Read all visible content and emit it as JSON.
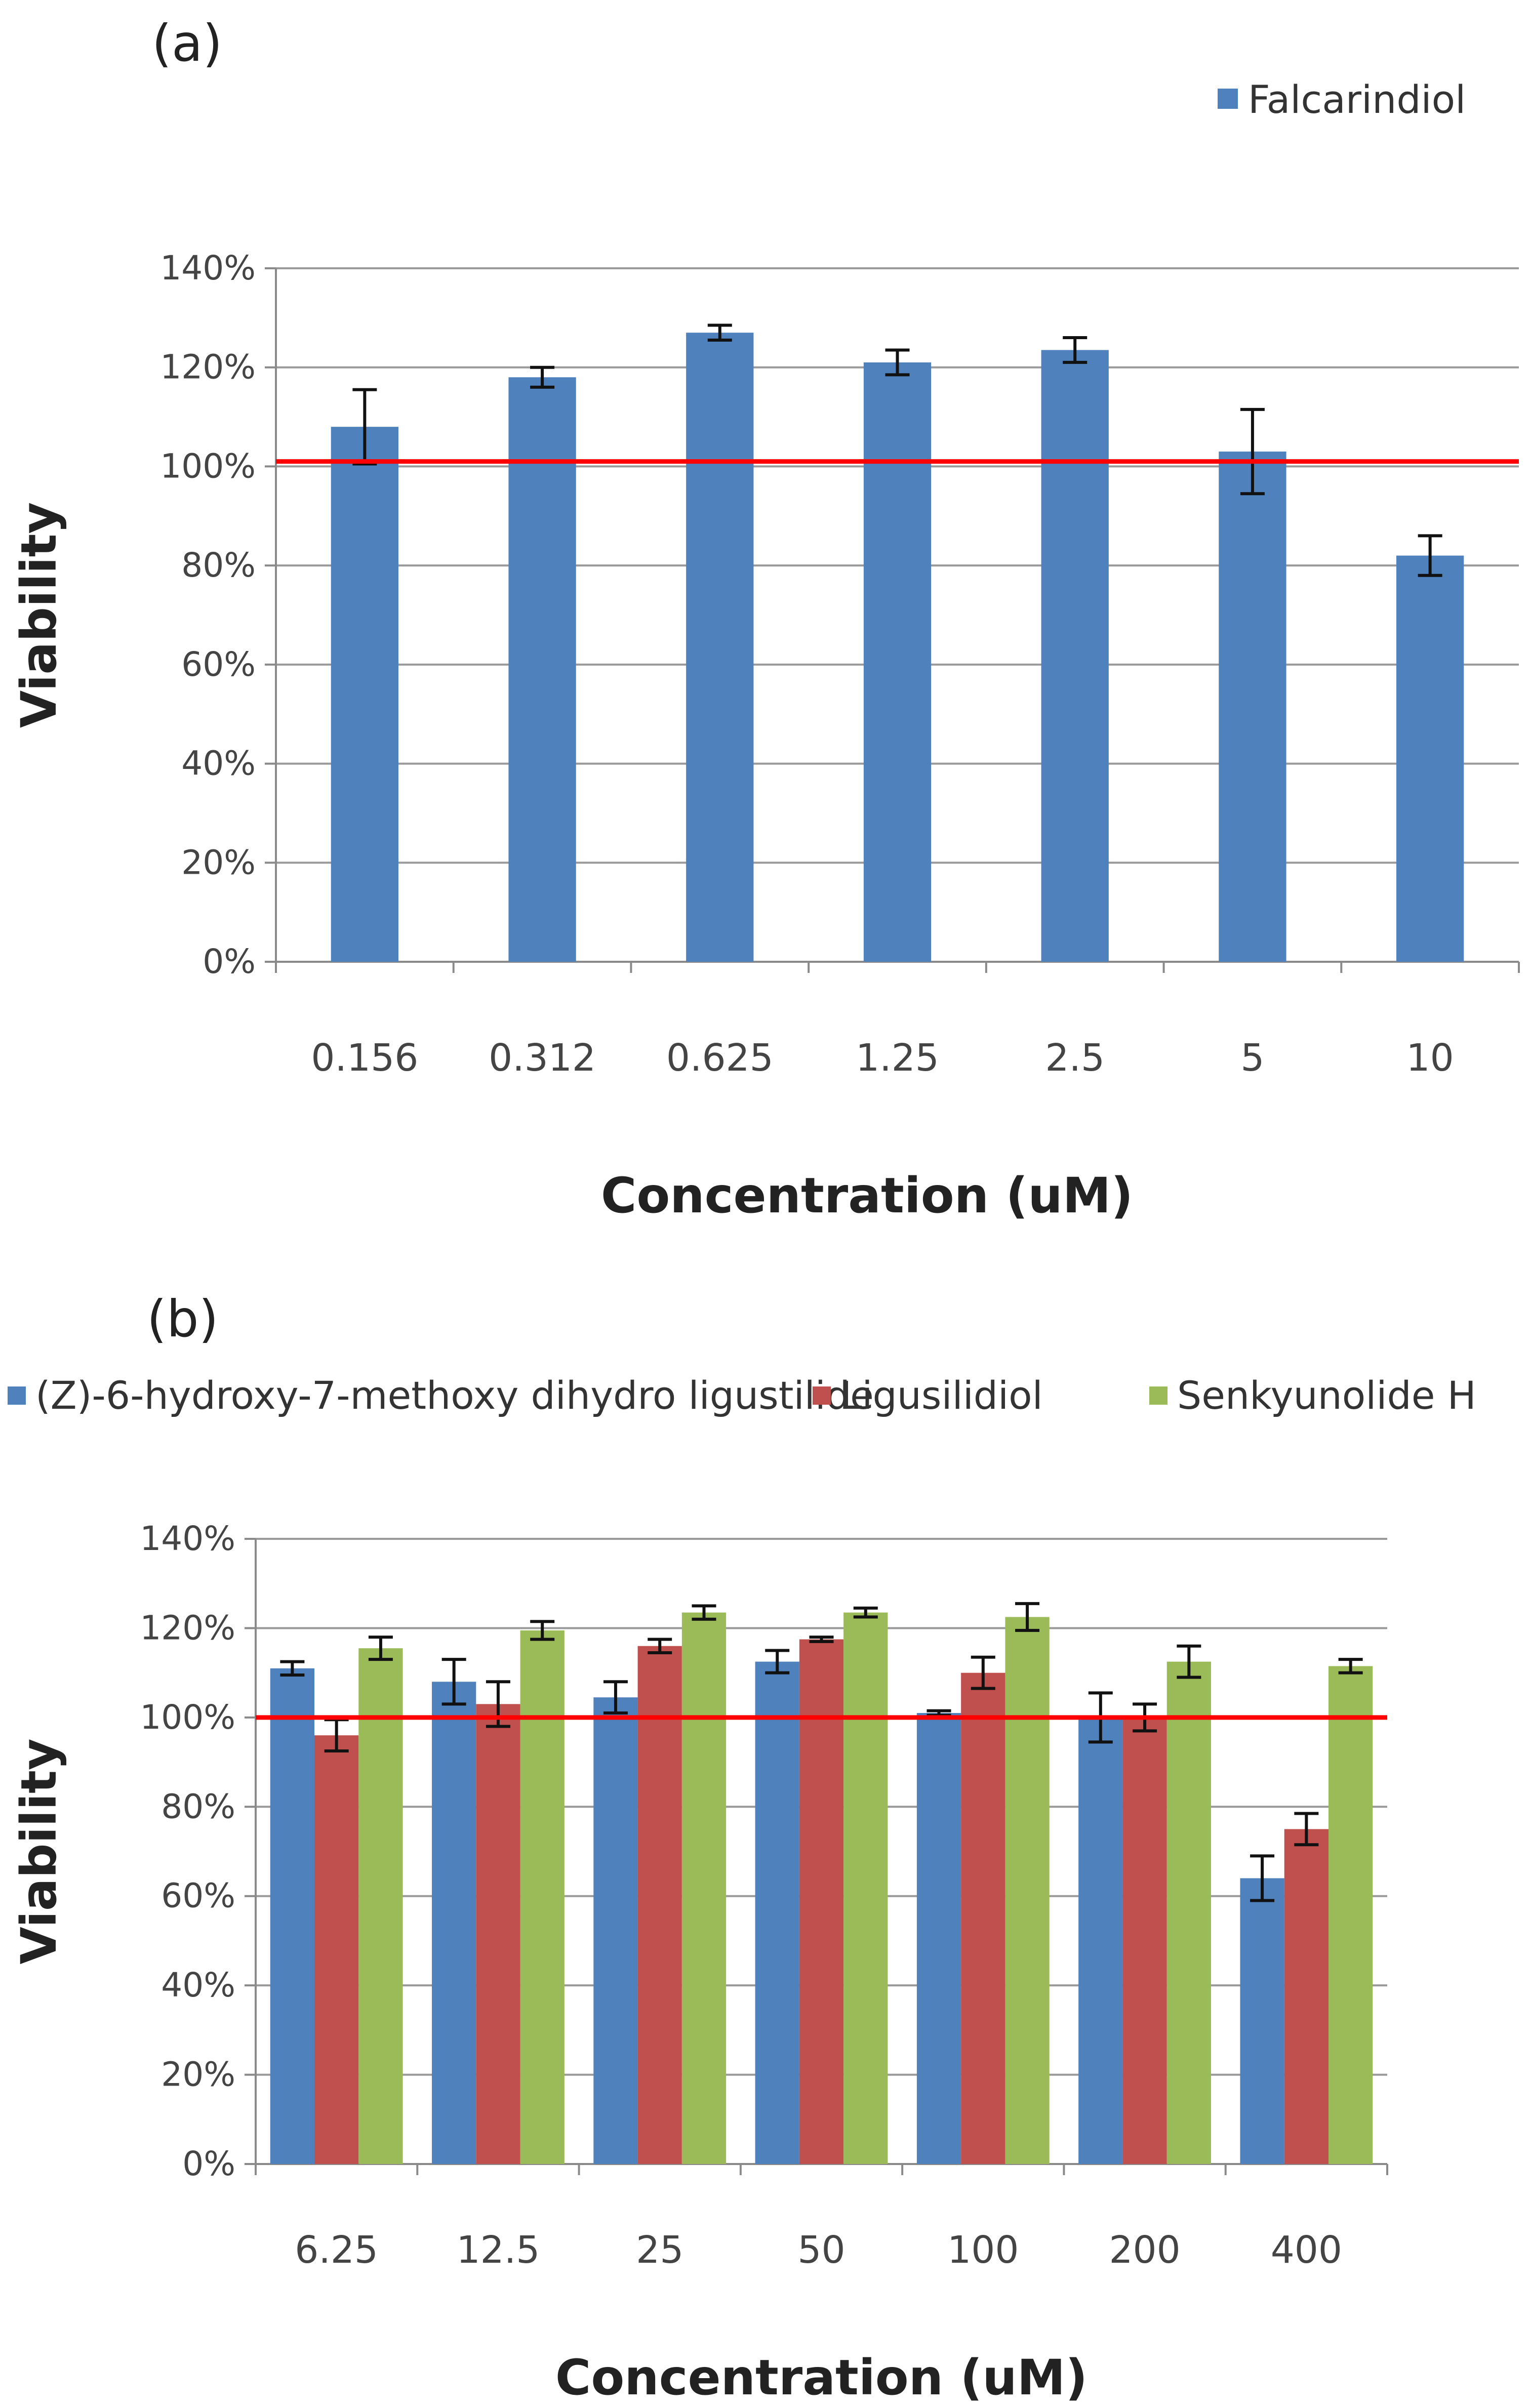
{
  "chart_data": [
    {
      "type": "bar",
      "panel_label": "(a)",
      "categories": [
        "0.156",
        "0.312",
        "0.625",
        "1.25",
        "2.5",
        "5",
        "10"
      ],
      "series": [
        {
          "name": "Falcarindiol",
          "color": "#4f81bd",
          "values": [
            108,
            118,
            127,
            121,
            123.5,
            103,
            82
          ],
          "errors": [
            7.5,
            2,
            1.5,
            2.5,
            2.5,
            8.5,
            4
          ]
        }
      ],
      "xlabel": "Concentration  (uM)",
      "ylabel": "Viability",
      "ylim": [
        0,
        140
      ],
      "yticks": [
        "0%",
        "20%",
        "40%",
        "60%",
        "80%",
        "100%",
        "120%",
        "140%"
      ],
      "reference_line": {
        "value": 101,
        "color": "#ff0000"
      },
      "grid": true,
      "legend_position": "top-right"
    },
    {
      "type": "bar",
      "panel_label": "(b)",
      "categories": [
        "6.25",
        "12.5",
        "25",
        "50",
        "100",
        "200",
        "400"
      ],
      "series": [
        {
          "name": "(Z)-6-hydroxy-7-methoxy dihydro ligustilide",
          "color": "#4f81bd",
          "values": [
            111,
            108,
            104.5,
            112.5,
            101,
            100,
            64
          ],
          "errors": [
            1.5,
            5,
            3.5,
            2.5,
            0.5,
            5.5,
            5
          ]
        },
        {
          "name": "Ligusilidiol",
          "color": "#c0504d",
          "values": [
            96,
            103,
            116,
            117.5,
            110,
            100,
            75
          ],
          "errors": [
            3.5,
            5,
            1.5,
            0.5,
            3.5,
            3,
            3.5
          ]
        },
        {
          "name": "Senkyunolide H",
          "color": "#9bbb59",
          "values": [
            115.5,
            119.5,
            123.5,
            123.5,
            122.5,
            112.5,
            111.5
          ],
          "errors": [
            2.5,
            2,
            1.5,
            1,
            3,
            3.5,
            1.5
          ]
        }
      ],
      "xlabel": "Concentration  (uM)",
      "ylabel": "Viability",
      "ylim": [
        0,
        140
      ],
      "yticks": [
        "0%",
        "20%",
        "40%",
        "60%",
        "80%",
        "100%",
        "120%",
        "140%"
      ],
      "reference_line": {
        "value": 100,
        "color": "#ff0000"
      },
      "grid": true,
      "legend_position": "top"
    }
  ]
}
